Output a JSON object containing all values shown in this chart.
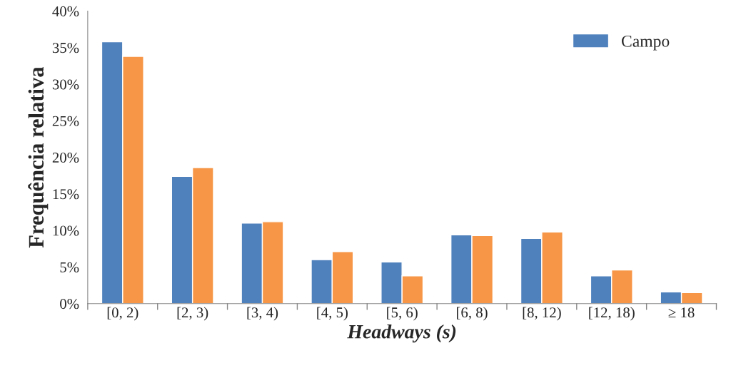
{
  "chart_data": {
    "type": "bar",
    "xlabel": "Headways (s)",
    "ylabel": "Frequência relativa",
    "categories": [
      "[0, 2)",
      "[2, 3)",
      "[3, 4)",
      "[4, 5)",
      "[5, 6)",
      "[6, 8)",
      "[8, 12)",
      "[12, 18)",
      "≥ 18"
    ],
    "series": [
      {
        "name": "Campo",
        "color": "#4f81bd",
        "values": [
          35.8,
          17.4,
          11.0,
          6.0,
          5.7,
          9.4,
          8.9,
          3.8,
          1.6
        ]
      },
      {
        "color": "#f79646",
        "values": [
          33.8,
          18.6,
          11.2,
          7.1,
          3.8,
          9.3,
          9.8,
          4.6,
          1.5
        ]
      }
    ],
    "ylim": [
      0,
      40
    ],
    "yticks": [
      {
        "value": 0,
        "label": "0%"
      },
      {
        "value": 5,
        "label": "5%"
      },
      {
        "value": 10,
        "label": "10%"
      },
      {
        "value": 15,
        "label": "15%"
      },
      {
        "value": 20,
        "label": "20%"
      },
      {
        "value": 25,
        "label": "25%"
      },
      {
        "value": 30,
        "label": "30%"
      },
      {
        "value": 35,
        "label": "35%"
      },
      {
        "value": 40,
        "label": "40%"
      }
    ],
    "grid": false,
    "legend": "top right"
  }
}
